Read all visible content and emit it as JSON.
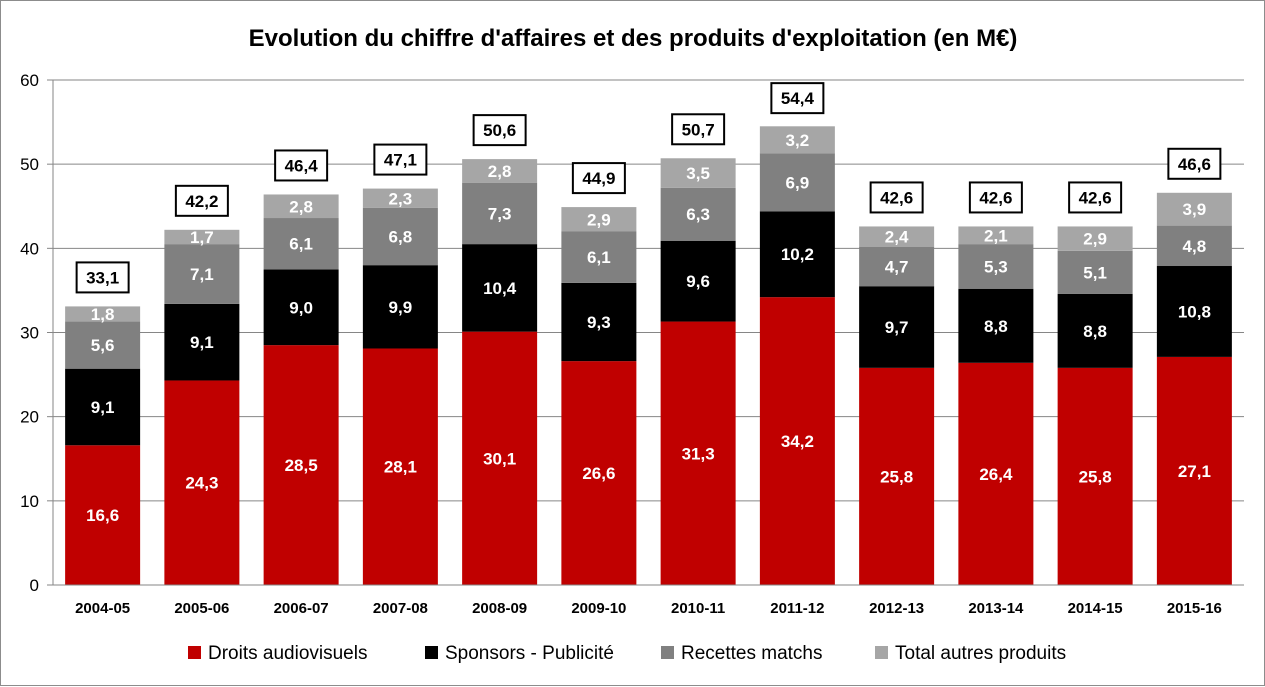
{
  "chart_data": {
    "type": "bar",
    "stacked": true,
    "title": "Evolution du chiffre d'affaires et des produits d'exploitation (en M€)",
    "categories": [
      "2004-05",
      "2005-06",
      "2006-07",
      "2007-08",
      "2008-09",
      "2009-10",
      "2010-11",
      "2011-12",
      "2012-13",
      "2013-14",
      "2014-15",
      "2015-16"
    ],
    "series": [
      {
        "name": "Droits audiovisuels",
        "color": "#c00000",
        "label_color": "#ffffff",
        "values": [
          16.6,
          24.3,
          28.5,
          28.1,
          30.1,
          26.6,
          31.3,
          34.2,
          25.8,
          26.4,
          25.8,
          27.1
        ],
        "labels": [
          "16,6",
          "24,3",
          "28,5",
          "28,1",
          "30,1",
          "26,6",
          "31,3",
          "34,2",
          "25,8",
          "26,4",
          "25,8",
          "27,1"
        ]
      },
      {
        "name": "Sponsors - Publicité",
        "color": "#000000",
        "label_color": "#ffffff",
        "values": [
          9.1,
          9.1,
          9.0,
          9.9,
          10.4,
          9.3,
          9.6,
          10.2,
          9.7,
          8.8,
          8.8,
          10.8
        ],
        "labels": [
          "9,1",
          "9,1",
          "9,0",
          "9,9",
          "10,4",
          "9,3",
          "9,6",
          "10,2",
          "9,7",
          "8,8",
          "8,8",
          "10,8"
        ]
      },
      {
        "name": "Recettes matchs",
        "color": "#808080",
        "label_color": "#ffffff",
        "values": [
          5.6,
          7.1,
          6.1,
          6.8,
          7.3,
          6.1,
          6.3,
          6.9,
          4.7,
          5.3,
          5.1,
          4.8
        ],
        "labels": [
          "5,6",
          "7,1",
          "6,1",
          "6,8",
          "7,3",
          "6,1",
          "6,3",
          "6,9",
          "4,7",
          "5,3",
          "5,1",
          "4,8"
        ]
      },
      {
        "name": "Total autres produits",
        "color": "#a6a6a6",
        "label_color": "#ffffff",
        "values": [
          1.8,
          1.7,
          2.8,
          2.3,
          2.8,
          2.9,
          3.5,
          3.2,
          2.4,
          2.1,
          2.9,
          3.9
        ],
        "labels": [
          "1,8",
          "1,7",
          "2,8",
          "2,3",
          "2,8",
          "2,9",
          "3,5",
          "3,2",
          "2,4",
          "2,1",
          "2,9",
          "3,9"
        ]
      }
    ],
    "totals": [
      33.1,
      42.2,
      46.4,
      47.1,
      50.6,
      44.9,
      50.7,
      54.4,
      42.6,
      42.6,
      42.6,
      46.6
    ],
    "total_labels": [
      "33,1",
      "42,2",
      "46,4",
      "47,1",
      "50,6",
      "44,9",
      "50,7",
      "54,4",
      "42,6",
      "42,6",
      "42,6",
      "46,6"
    ],
    "ylim": [
      0,
      60
    ],
    "yticks": [
      "0",
      "10",
      "20",
      "30",
      "40",
      "50",
      "60"
    ],
    "grid": true,
    "legend_position": "bottom"
  }
}
